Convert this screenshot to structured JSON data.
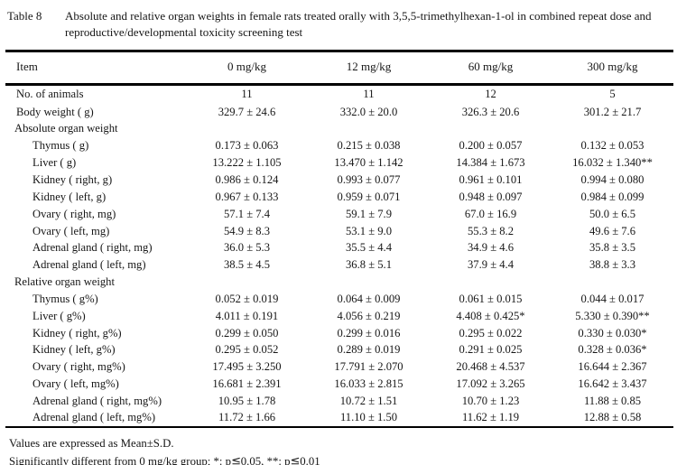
{
  "caption": {
    "label": "Table 8",
    "title": "Absolute and relative organ weights in female rats treated orally with 3,5,5-trimethylhexan-1-ol in combined repeat dose and reproductive/developmental toxicity screening test"
  },
  "table": {
    "columns": [
      "Item",
      "0 mg/kg",
      "12 mg/kg",
      "60 mg/kg",
      "300 mg/kg"
    ],
    "rows": [
      {
        "label": "No. of animals",
        "type": "data",
        "indent": 0,
        "values": [
          "11",
          "11",
          "12",
          "5"
        ]
      },
      {
        "label": "Body weight ( g)",
        "type": "data",
        "indent": 0,
        "values": [
          "329.7 ± 24.6",
          "332.0 ± 20.0",
          "326.3 ± 20.6",
          "301.2 ± 21.7"
        ]
      },
      {
        "label": "Absolute organ weight",
        "type": "section",
        "indent": 0,
        "values": [
          "",
          "",
          "",
          ""
        ]
      },
      {
        "label": "Thymus ( g)",
        "type": "data",
        "indent": 1,
        "values": [
          "0.173 ± 0.063",
          "0.215 ± 0.038",
          "0.200 ± 0.057",
          "0.132 ± 0.053"
        ]
      },
      {
        "label": "Liver ( g)",
        "type": "data",
        "indent": 1,
        "values": [
          "13.222 ± 1.105",
          "13.470 ± 1.142",
          "14.384 ± 1.673",
          "16.032 ± 1.340**"
        ]
      },
      {
        "label": "Kidney ( right, g)",
        "type": "data",
        "indent": 1,
        "values": [
          "0.986 ± 0.124",
          "0.993 ± 0.077",
          "0.961 ± 0.101",
          "0.994 ± 0.080"
        ]
      },
      {
        "label": "Kidney ( left, g)",
        "type": "data",
        "indent": 1,
        "values": [
          "0.967 ± 0.133",
          "0.959 ± 0.071",
          "0.948 ± 0.097",
          "0.984 ± 0.099"
        ]
      },
      {
        "label": "Ovary ( right, mg)",
        "type": "data",
        "indent": 1,
        "values": [
          "57.1 ± 7.4",
          "59.1 ± 7.9",
          "67.0 ± 16.9",
          "50.0 ± 6.5"
        ]
      },
      {
        "label": "Ovary ( left, mg)",
        "type": "data",
        "indent": 1,
        "values": [
          "54.9 ± 8.3",
          "53.1 ± 9.0",
          "55.3 ± 8.2",
          "49.6 ± 7.6"
        ]
      },
      {
        "label": "Adrenal gland ( right, mg)",
        "type": "data",
        "indent": 1,
        "values": [
          "36.0 ± 5.3",
          "35.5 ± 4.4",
          "34.9 ± 4.6",
          "35.8 ± 3.5"
        ]
      },
      {
        "label": "Adrenal gland ( left, mg)",
        "type": "data",
        "indent": 1,
        "values": [
          "38.5 ± 4.5",
          "36.8 ± 5.1",
          "37.9 ± 4.4",
          "38.8 ± 3.3"
        ]
      },
      {
        "label": "Relative organ weight",
        "type": "section",
        "indent": 0,
        "values": [
          "",
          "",
          "",
          ""
        ]
      },
      {
        "label": "Thymus ( g%)",
        "type": "data",
        "indent": 1,
        "values": [
          "0.052 ± 0.019",
          "0.064 ± 0.009",
          "0.061 ± 0.015",
          "0.044 ± 0.017"
        ]
      },
      {
        "label": "Liver ( g%)",
        "type": "data",
        "indent": 1,
        "values": [
          "4.011 ± 0.191",
          "4.056 ± 0.219",
          "4.408 ± 0.425*",
          "5.330 ± 0.390**"
        ]
      },
      {
        "label": "Kidney ( right, g%)",
        "type": "data",
        "indent": 1,
        "values": [
          "0.299 ± 0.050",
          "0.299 ± 0.016",
          "0.295 ± 0.022",
          "0.330 ± 0.030*"
        ]
      },
      {
        "label": "Kidney ( left, g%)",
        "type": "data",
        "indent": 1,
        "values": [
          "0.295 ± 0.052",
          "0.289 ± 0.019",
          "0.291 ± 0.025",
          "0.328 ± 0.036*"
        ]
      },
      {
        "label": "Ovary ( right, mg%)",
        "type": "data",
        "indent": 1,
        "values": [
          "17.495 ± 3.250",
          "17.791 ± 2.070",
          "20.468 ± 4.537",
          "16.644 ± 2.367"
        ]
      },
      {
        "label": "Ovary ( left, mg%)",
        "type": "data",
        "indent": 1,
        "values": [
          "16.681 ± 2.391",
          "16.033 ± 2.815",
          "17.092 ± 3.265",
          "16.642 ± 3.437"
        ]
      },
      {
        "label": "Adrenal gland ( right, mg%)",
        "type": "data",
        "indent": 1,
        "values": [
          "10.95 ± 1.78",
          "10.72 ± 1.51",
          "10.70 ± 1.23",
          "11.88 ± 0.85"
        ]
      },
      {
        "label": "Adrenal gland ( left, mg%)",
        "type": "data",
        "indent": 1,
        "values": [
          "11.72 ± 1.66",
          "11.10 ± 1.50",
          "11.62 ± 1.19",
          "12.88 ± 0.58"
        ]
      }
    ]
  },
  "footnotes": [
    "Values are expressed as Mean±S.D.",
    "Significantly different from 0 mg/kg group;  *: p≦0.05, **: p≦0.01"
  ]
}
